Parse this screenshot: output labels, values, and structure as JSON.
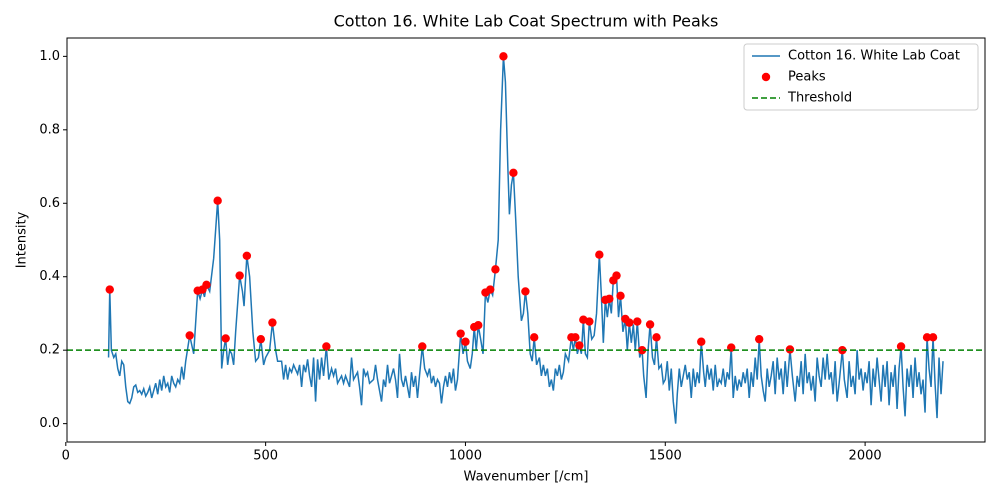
{
  "chart_data": {
    "type": "line",
    "title": "Cotton 16. White Lab Coat Spectrum with Peaks",
    "x_label": "Wavenumber [/cm]",
    "y_label": "Intensity",
    "xlim": [
      3,
      2300
    ],
    "ylim": [
      -0.05,
      1.05
    ],
    "xticks": [
      0,
      500,
      1000,
      1500,
      2000
    ],
    "yticks": [
      {
        "value": 0,
        "label": "0.0"
      },
      0.2,
      0.4,
      0.6,
      0.8,
      {
        "value": 1,
        "label": "1.0"
      }
    ],
    "legend": "upper right",
    "threshold": {
      "name": "Threshold",
      "value": 0.2,
      "color": "green"
    },
    "series": [
      {
        "name": "Cotton 16. White Lab Coat",
        "type": "line",
        "color": "#1f77b4",
        "x": [
          107,
          110,
          114,
          120,
          125,
          130,
          135,
          140,
          145,
          150,
          155,
          160,
          165,
          170,
          175,
          180,
          185,
          190,
          195,
          200,
          205,
          210,
          215,
          220,
          225,
          230,
          235,
          240,
          245,
          250,
          255,
          260,
          265,
          270,
          275,
          280,
          285,
          290,
          295,
          300,
          310,
          320,
          330,
          336,
          342,
          347,
          352,
          360,
          370,
          380,
          385,
          390,
          395,
          400,
          405,
          410,
          415,
          420,
          425,
          435,
          442,
          446,
          453,
          460,
          468,
          475,
          482,
          488,
          495,
          500,
          510,
          517,
          525,
          530,
          540,
          545,
          550,
          555,
          560,
          565,
          570,
          580,
          585,
          590,
          595,
          600,
          605,
          610,
          615,
          620,
          625,
          630,
          635,
          640,
          645,
          652,
          658,
          665,
          670,
          675,
          680,
          685,
          690,
          695,
          700,
          710,
          715,
          720,
          730,
          735,
          740,
          745,
          750,
          755,
          760,
          770,
          775,
          780,
          790,
          795,
          800,
          805,
          810,
          820,
          825,
          830,
          835,
          840,
          845,
          850,
          860,
          865,
          870,
          875,
          880,
          885,
          892,
          898,
          905,
          910,
          915,
          920,
          925,
          930,
          935,
          940,
          945,
          950,
          955,
          960,
          965,
          970,
          975,
          980,
          988,
          994,
          1000,
          1005,
          1012,
          1017,
          1022,
          1027,
          1032,
          1038,
          1044,
          1050,
          1056,
          1062,
          1068,
          1075,
          1082,
          1088,
          1095,
          1100,
          1106,
          1110,
          1115,
          1120,
          1126,
          1132,
          1140,
          1145,
          1150,
          1156,
          1162,
          1167,
          1172,
          1178,
          1185,
          1190,
          1195,
          1200,
          1205,
          1210,
          1215,
          1220,
          1225,
          1230,
          1235,
          1240,
          1245,
          1250,
          1258,
          1265,
          1270,
          1275,
          1280,
          1285,
          1290,
          1295,
          1300,
          1305,
          1310,
          1316,
          1322,
          1328,
          1335,
          1340,
          1345,
          1350,
          1355,
          1360,
          1365,
          1370,
          1378,
          1383,
          1388,
          1394,
          1400,
          1405,
          1410,
          1415,
          1420,
          1425,
          1430,
          1436,
          1442,
          1446,
          1452,
          1457,
          1462,
          1468,
          1473,
          1478,
          1484,
          1490,
          1495,
          1500,
          1505,
          1510,
          1515,
          1520,
          1526,
          1530,
          1535,
          1540,
          1545,
          1550,
          1555,
          1560,
          1565,
          1570,
          1575,
          1580,
          1585,
          1590,
          1596,
          1600,
          1605,
          1610,
          1615,
          1620,
          1625,
          1630,
          1635,
          1640,
          1645,
          1650,
          1655,
          1660,
          1665,
          1670,
          1675,
          1680,
          1685,
          1690,
          1695,
          1700,
          1705,
          1710,
          1715,
          1720,
          1725,
          1730,
          1735,
          1740,
          1745,
          1750,
          1755,
          1760,
          1765,
          1770,
          1775,
          1780,
          1785,
          1790,
          1795,
          1800,
          1805,
          1812,
          1818,
          1825,
          1830,
          1835,
          1840,
          1845,
          1850,
          1855,
          1860,
          1865,
          1870,
          1875,
          1880,
          1885,
          1890,
          1895,
          1900,
          1905,
          1910,
          1915,
          1920,
          1925,
          1930,
          1935,
          1943,
          1948,
          1955,
          1960,
          1965,
          1970,
          1975,
          1980,
          1985,
          1990,
          1995,
          2000,
          2005,
          2010,
          2015,
          2020,
          2025,
          2030,
          2035,
          2040,
          2045,
          2050,
          2055,
          2060,
          2065,
          2070,
          2075,
          2080,
          2085,
          2090,
          2095,
          2100,
          2105,
          2110,
          2115,
          2120,
          2125,
          2130,
          2135,
          2140,
          2145,
          2150,
          2155,
          2160,
          2165,
          2170,
          2175,
          2180,
          2185,
          2190,
          2195
        ],
        "values": [
          0.18,
          0.365,
          0.2,
          0.18,
          0.19,
          0.15,
          0.13,
          0.17,
          0.16,
          0.1,
          0.06,
          0.055,
          0.07,
          0.1,
          0.105,
          0.085,
          0.09,
          0.08,
          0.095,
          0.075,
          0.085,
          0.1,
          0.07,
          0.09,
          0.11,
          0.08,
          0.12,
          0.09,
          0.13,
          0.1,
          0.11,
          0.085,
          0.13,
          0.11,
          0.1,
          0.12,
          0.11,
          0.155,
          0.12,
          0.17,
          0.24,
          0.19,
          0.362,
          0.34,
          0.365,
          0.345,
          0.378,
          0.36,
          0.45,
          0.607,
          0.5,
          0.15,
          0.2,
          0.232,
          0.16,
          0.2,
          0.19,
          0.16,
          0.25,
          0.403,
          0.36,
          0.32,
          0.457,
          0.4,
          0.25,
          0.17,
          0.18,
          0.23,
          0.16,
          0.18,
          0.2,
          0.275,
          0.2,
          0.17,
          0.17,
          0.12,
          0.16,
          0.12,
          0.15,
          0.14,
          0.16,
          0.135,
          0.16,
          0.1,
          0.16,
          0.14,
          0.175,
          0.13,
          0.1,
          0.18,
          0.06,
          0.175,
          0.12,
          0.18,
          0.13,
          0.21,
          0.12,
          0.15,
          0.13,
          0.15,
          0.11,
          0.12,
          0.13,
          0.11,
          0.13,
          0.1,
          0.18,
          0.12,
          0.14,
          0.1,
          0.05,
          0.15,
          0.13,
          0.14,
          0.11,
          0.12,
          0.16,
          0.12,
          0.06,
          0.12,
          0.1,
          0.16,
          0.11,
          0.15,
          0.12,
          0.07,
          0.19,
          0.12,
          0.1,
          0.13,
          0.07,
          0.14,
          0.1,
          0.13,
          0.07,
          0.13,
          0.21,
          0.15,
          0.13,
          0.15,
          0.11,
          0.13,
          0.1,
          0.12,
          0.11,
          0.055,
          0.1,
          0.13,
          0.1,
          0.14,
          0.11,
          0.15,
          0.09,
          0.12,
          0.245,
          0.19,
          0.223,
          0.17,
          0.15,
          0.19,
          0.263,
          0.2,
          0.268,
          0.23,
          0.19,
          0.357,
          0.33,
          0.365,
          0.35,
          0.42,
          0.5,
          0.8,
          1.0,
          0.93,
          0.7,
          0.57,
          0.65,
          0.683,
          0.55,
          0.4,
          0.28,
          0.3,
          0.36,
          0.3,
          0.19,
          0.17,
          0.235,
          0.16,
          0.18,
          0.13,
          0.16,
          0.13,
          0.15,
          0.1,
          0.12,
          0.09,
          0.15,
          0.13,
          0.16,
          0.12,
          0.14,
          0.19,
          0.17,
          0.235,
          0.2,
          0.235,
          0.19,
          0.213,
          0.19,
          0.283,
          0.19,
          0.18,
          0.278,
          0.23,
          0.24,
          0.3,
          0.46,
          0.35,
          0.22,
          0.337,
          0.29,
          0.34,
          0.3,
          0.39,
          0.403,
          0.29,
          0.348,
          0.25,
          0.285,
          0.2,
          0.275,
          0.22,
          0.27,
          0.2,
          0.278,
          0.18,
          0.2,
          0.13,
          0.07,
          0.2,
          0.27,
          0.18,
          0.16,
          0.235,
          0.15,
          0.16,
          0.11,
          0.12,
          0.17,
          0.09,
          0.15,
          0.06,
          0.0,
          0.08,
          0.15,
          0.1,
          0.13,
          0.16,
          0.12,
          0.14,
          0.07,
          0.15,
          0.1,
          0.14,
          0.11,
          0.223,
          0.14,
          0.1,
          0.16,
          0.12,
          0.15,
          0.09,
          0.16,
          0.1,
          0.12,
          0.11,
          0.15,
          0.1,
          0.14,
          0.12,
          0.207,
          0.07,
          0.13,
          0.09,
          0.12,
          0.1,
          0.14,
          0.11,
          0.15,
          0.07,
          0.14,
          0.1,
          0.18,
          0.12,
          0.23,
          0.13,
          0.09,
          0.06,
          0.15,
          0.1,
          0.13,
          0.17,
          0.08,
          0.18,
          0.12,
          0.15,
          0.08,
          0.17,
          0.1,
          0.202,
          0.13,
          0.06,
          0.13,
          0.1,
          0.17,
          0.08,
          0.19,
          0.11,
          0.14,
          0.09,
          0.13,
          0.06,
          0.18,
          0.13,
          0.1,
          0.18,
          0.12,
          0.19,
          0.12,
          0.14,
          0.08,
          0.17,
          0.06,
          0.11,
          0.2,
          0.12,
          0.07,
          0.17,
          0.1,
          0.13,
          0.08,
          0.2,
          0.12,
          0.15,
          0.09,
          0.14,
          0.11,
          0.17,
          0.05,
          0.15,
          0.1,
          0.18,
          0.12,
          0.06,
          0.16,
          0.1,
          0.17,
          0.05,
          0.14,
          0.1,
          0.16,
          0.04,
          0.15,
          0.21,
          0.1,
          0.02,
          0.15,
          0.1,
          0.16,
          0.07,
          0.18,
          0.1,
          0.14,
          0.08,
          0.12,
          0.03,
          0.235,
          0.15,
          0.1,
          0.235,
          0.11,
          0.015,
          0.18,
          0.08,
          0.17
        ]
      },
      {
        "name": "Peaks",
        "type": "scatter",
        "color": "red",
        "x": [
          110,
          310,
          330,
          342,
          352,
          380,
          400,
          435,
          453,
          488,
          517,
          652,
          892,
          988,
          1000,
          1022,
          1032,
          1050,
          1062,
          1075,
          1095,
          1120,
          1150,
          1172,
          1265,
          1275,
          1285,
          1295,
          1310,
          1335,
          1350,
          1360,
          1370,
          1378,
          1388,
          1400,
          1410,
          1430,
          1442,
          1462,
          1478,
          1590,
          1665,
          1735,
          1812,
          1943,
          2090,
          2155,
          2170
        ],
        "values": [
          0.365,
          0.24,
          0.362,
          0.365,
          0.378,
          0.607,
          0.232,
          0.403,
          0.457,
          0.23,
          0.275,
          0.21,
          0.21,
          0.245,
          0.223,
          0.263,
          0.268,
          0.357,
          0.365,
          0.42,
          1.0,
          0.683,
          0.36,
          0.235,
          0.235,
          0.235,
          0.213,
          0.283,
          0.278,
          0.46,
          0.337,
          0.34,
          0.39,
          0.403,
          0.348,
          0.285,
          0.275,
          0.278,
          0.2,
          0.27,
          0.235,
          0.223,
          0.207,
          0.23,
          0.202,
          0.2,
          0.21,
          0.235,
          0.235
        ]
      }
    ]
  }
}
